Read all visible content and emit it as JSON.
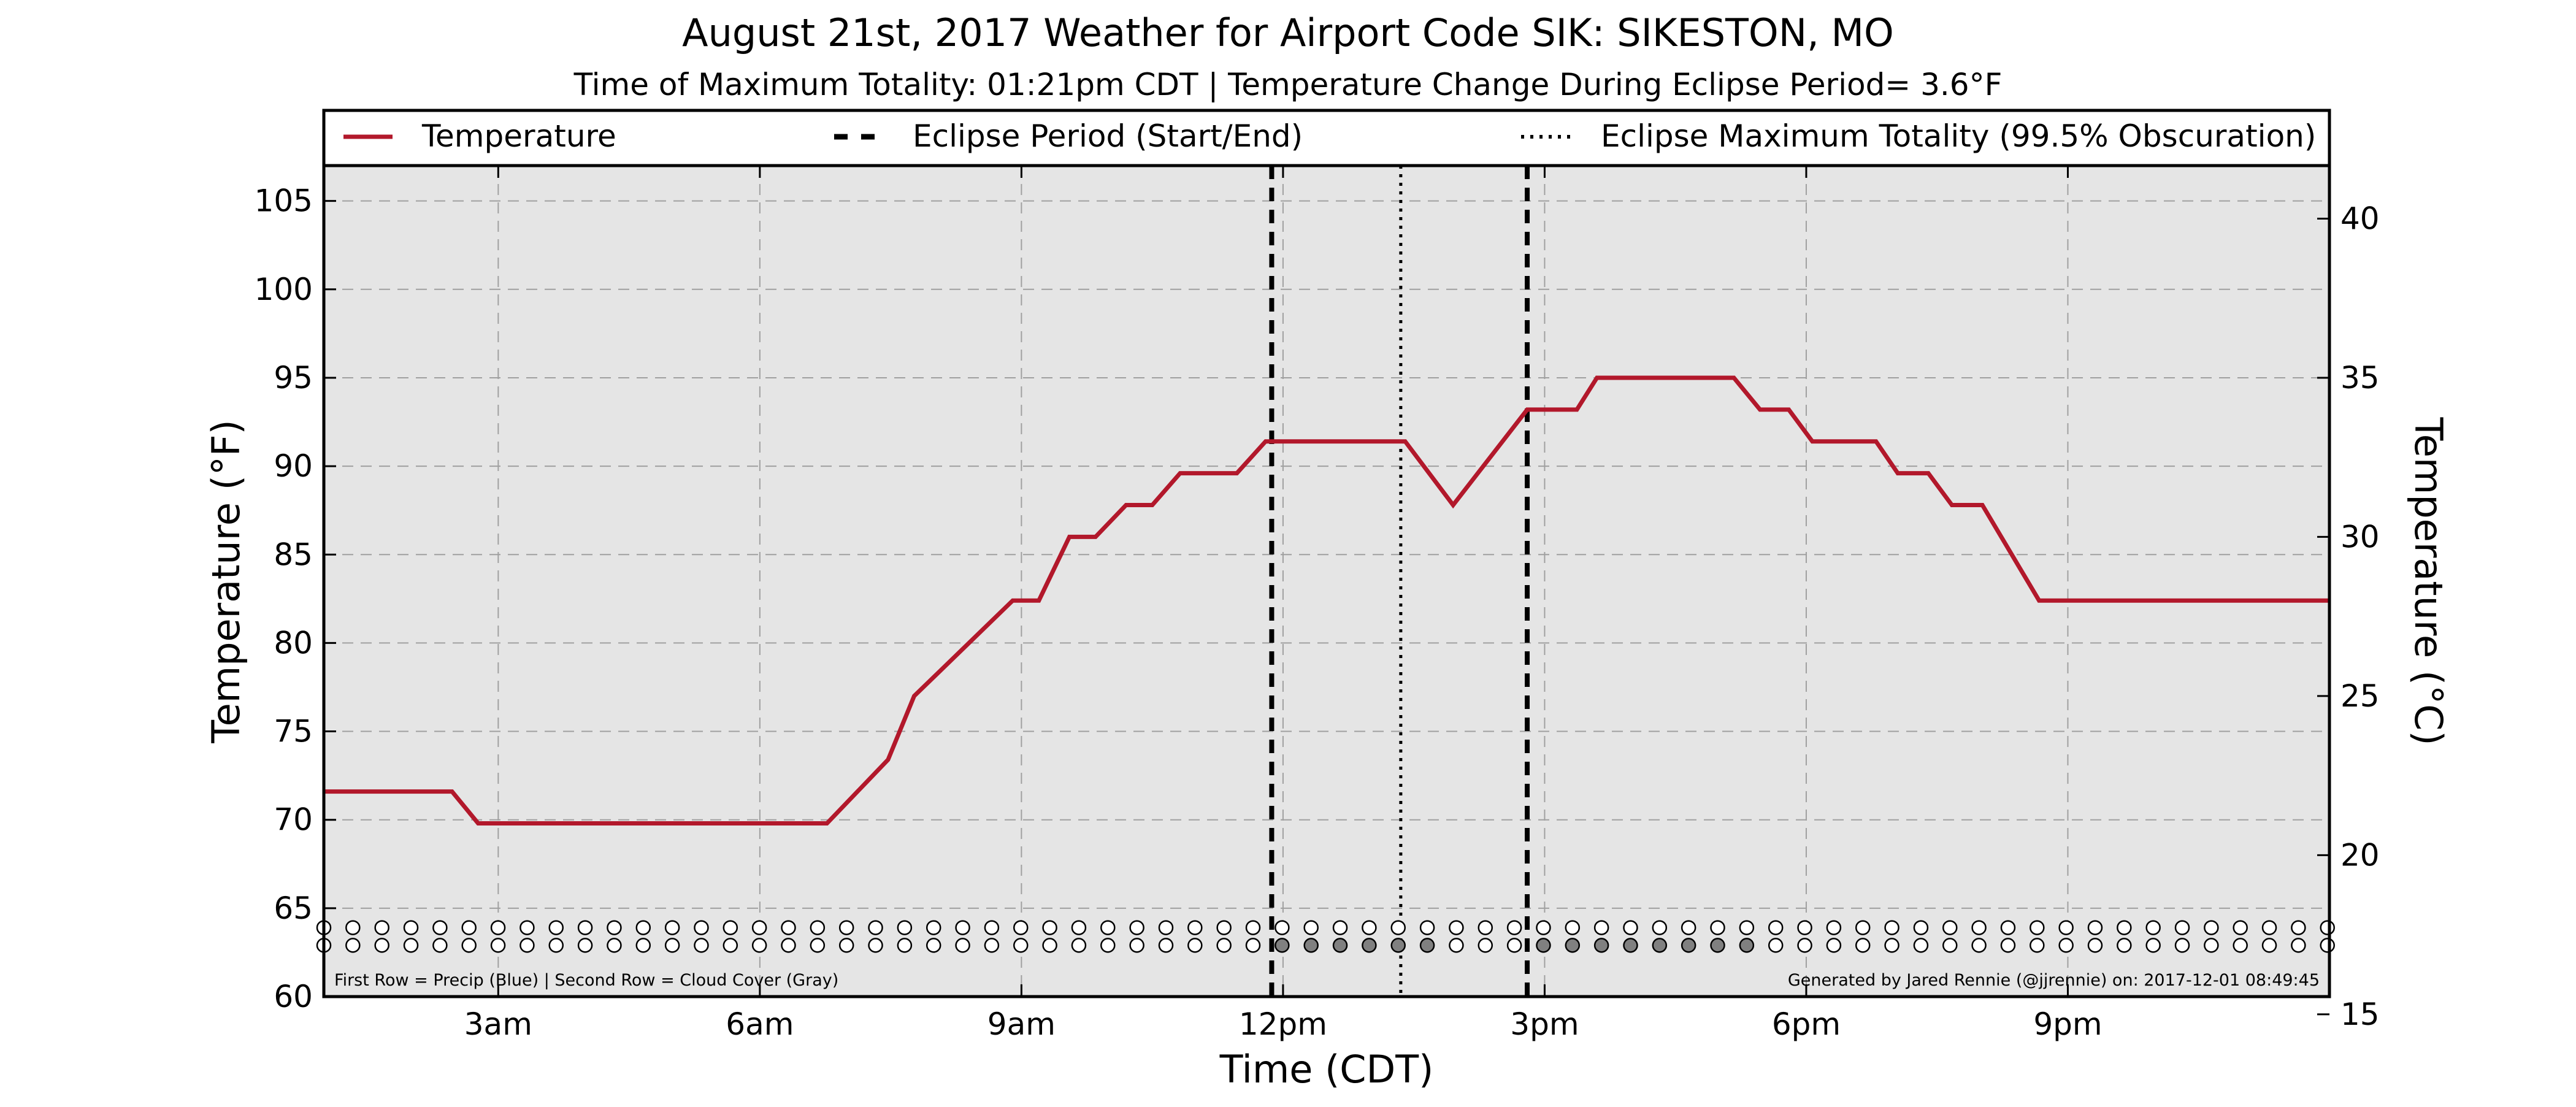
{
  "chart_data": {
    "type": "line",
    "title": "August 21st, 2017 Weather for Airport Code SIK: SIKESTON, MO",
    "subtitle": "Time of Maximum Totality: 01:21pm CDT | Temperature Change During Eclipse Period= 3.6°F",
    "xlabel": "Time (CDT)",
    "ylabel": "Temperature (°F)",
    "ylabel_right": "Temperature (°C)",
    "xlim": [
      1.0,
      24.0
    ],
    "ylim": [
      60,
      107
    ],
    "ylim_right": [
      15.5556,
      41.6667
    ],
    "grid": true,
    "legend_position": "top",
    "x_ticks": [
      {
        "value": 3,
        "label": "3am"
      },
      {
        "value": 6,
        "label": "6am"
      },
      {
        "value": 9,
        "label": "9am"
      },
      {
        "value": 12,
        "label": "12pm"
      },
      {
        "value": 15,
        "label": "3pm"
      },
      {
        "value": 18,
        "label": "6pm"
      },
      {
        "value": 21,
        "label": "9pm"
      }
    ],
    "y_ticks": [
      60,
      65,
      70,
      75,
      80,
      85,
      90,
      95,
      100,
      105
    ],
    "y_ticks_right": [
      15,
      20,
      25,
      30,
      35,
      40
    ],
    "series": [
      {
        "name": "Temperature",
        "color": "#b2182b",
        "x": [
          1.0,
          2.47,
          2.77,
          6.47,
          6.77,
          7.47,
          7.77,
          8.9,
          9.2,
          9.55,
          9.85,
          10.2,
          10.5,
          10.82,
          11.12,
          11.47,
          11.8,
          12.07,
          13.4,
          13.95,
          14.8,
          15.07,
          15.37,
          15.6,
          17.17,
          17.47,
          17.8,
          18.07,
          18.8,
          19.05,
          19.4,
          19.67,
          20.02,
          20.67,
          24.0
        ],
        "y": [
          71.6,
          71.6,
          69.8,
          69.8,
          69.8,
          73.4,
          77.0,
          82.4,
          82.4,
          86.0,
          86.0,
          87.8,
          87.8,
          89.6,
          89.6,
          89.6,
          91.4,
          91.4,
          91.4,
          87.8,
          93.2,
          93.2,
          93.2,
          95.0,
          95.0,
          93.2,
          93.2,
          91.4,
          91.4,
          89.6,
          89.6,
          87.8,
          87.8,
          82.4,
          82.4
        ]
      }
    ],
    "eclipse_start": 11.87,
    "eclipse_max": 13.35,
    "eclipse_end": 14.8,
    "legend": {
      "temperature": "Temperature",
      "eclipse_period": "Eclipse Period (Start/End)",
      "eclipse_max": "Eclipse Maximum Totality (99.5% Obscuration)"
    },
    "marker_rows": {
      "first_row_temp": 63.9,
      "second_row_temp": 62.9,
      "x_start": 1.0,
      "x_step": 0.333,
      "count": 70,
      "precip_colors": [],
      "cloud_cover_shaded_indices": [
        33,
        34,
        35,
        36,
        37,
        38,
        42,
        43,
        44,
        45,
        46,
        47,
        48,
        49
      ],
      "empty_fill": "#ffffff",
      "cloud_fill": "#808080"
    },
    "footer_left": "First Row = Precip (Blue) | Second Row = Cloud Cover (Gray)",
    "footer_right": "Generated by Jared Rennie (@jjrennie) on: 2017-12-01 08:49:45"
  },
  "colors": {
    "plot_background": "#e5e5e5",
    "grid": "#a0a0a0",
    "eclipse_line": "#000000"
  }
}
